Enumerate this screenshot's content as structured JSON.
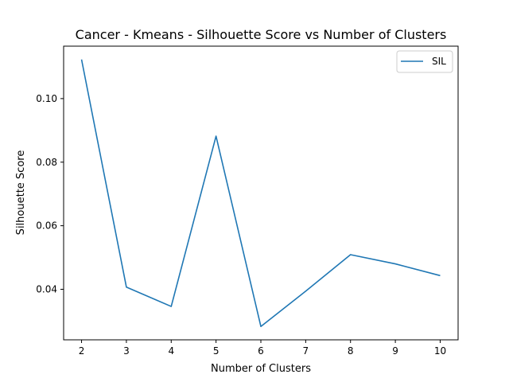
{
  "chart_data": {
    "type": "line",
    "title": "Cancer - Kmeans - Silhouette Score vs Number of Clusters",
    "xlabel": "Number of Clusters",
    "ylabel": "Silhouette Score",
    "x": [
      2,
      3,
      4,
      5,
      6,
      7,
      8,
      9,
      10
    ],
    "series": [
      {
        "name": "SIL",
        "values": [
          0.1123,
          0.0407,
          0.0346,
          0.0882,
          0.0283,
          0.0394,
          0.0509,
          0.048,
          0.0443
        ],
        "color": "#1f77b4"
      }
    ],
    "xticks": [
      2,
      3,
      4,
      5,
      6,
      7,
      8,
      9,
      10
    ],
    "yticks": [
      0.04,
      0.06,
      0.08,
      0.1
    ],
    "ytick_labels": [
      "0.04",
      "0.06",
      "0.08",
      "0.10"
    ],
    "xlim": [
      1.6,
      10.4
    ],
    "ylim": [
      0.0241,
      0.1165
    ],
    "grid": false,
    "legend_position": "top-right"
  }
}
